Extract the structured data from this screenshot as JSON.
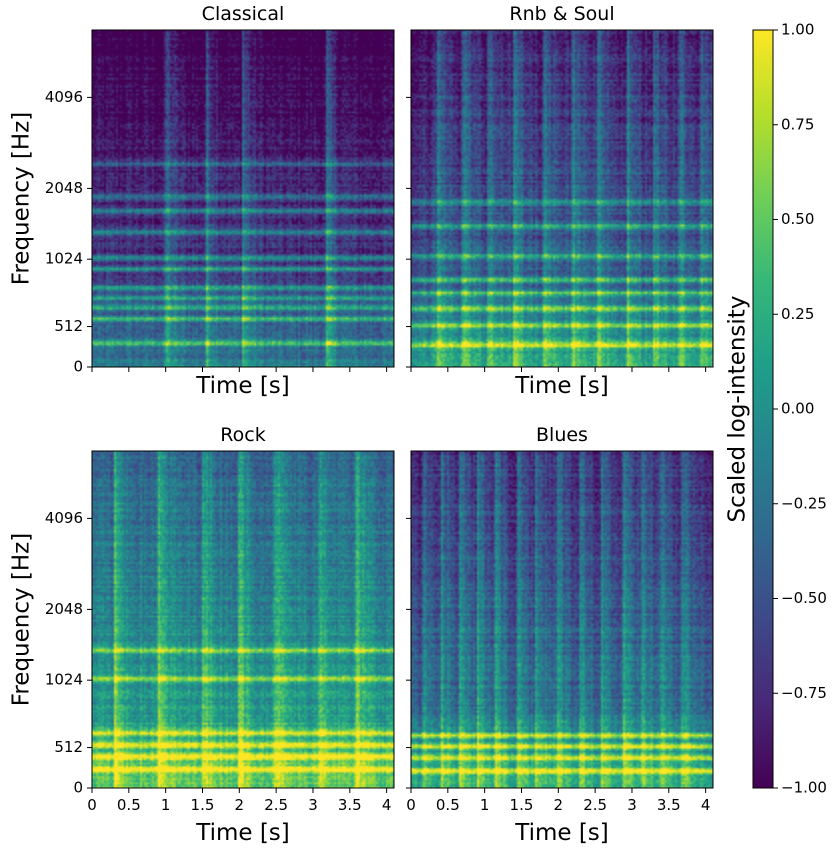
{
  "chart_data": [
    {
      "type": "heatmap",
      "title": "Classical",
      "xlabel": "Time [s]",
      "ylabel": "Frequency [Hz]",
      "xlim": [
        0,
        4.1
      ],
      "ylim": [
        0,
        8000
      ],
      "y_scale": "mel-like",
      "x_ticks": [],
      "y_ticks": [
        "0",
        "512",
        "1024",
        "2048",
        "4096"
      ],
      "y_tick_values": [
        0,
        512,
        1024,
        2048,
        4096
      ],
      "harmonic_bands_hz": [
        130,
        300,
        390,
        470,
        560,
        750,
        880,
        1220,
        1550,
        1800,
        2500
      ],
      "onsets_s": [
        1.0,
        1.55,
        2.05,
        3.2
      ],
      "base_level": -0.55,
      "low_freq_boost": 0.6
    },
    {
      "type": "heatmap",
      "title": "Rnb & Soul",
      "xlabel": "Time [s]",
      "ylabel": "",
      "xlim": [
        0,
        4.1
      ],
      "ylim": [
        0,
        8000
      ],
      "y_scale": "mel-like",
      "x_ticks": [],
      "y_ticks": [],
      "harmonic_bands_hz": [
        120,
        250,
        380,
        510,
        640,
        900,
        1300,
        1700
      ],
      "onsets_s": [
        0.35,
        0.7,
        1.05,
        1.4,
        1.8,
        2.2,
        2.55,
        2.95,
        3.3,
        3.65,
        3.95
      ],
      "base_level": -0.35,
      "low_freq_boost": 0.9
    },
    {
      "type": "heatmap",
      "title": "Rock",
      "xlabel": "Time [s]",
      "ylabel": "Frequency [Hz]",
      "xlim": [
        0,
        4.1
      ],
      "ylim": [
        0,
        8000
      ],
      "y_scale": "mel-like",
      "x_ticks": [
        "0",
        "0.5",
        "1",
        "1.5",
        "2",
        "2.5",
        "3",
        "3.5",
        "4"
      ],
      "x_tick_values": [
        0,
        0.5,
        1,
        1.5,
        2,
        2.5,
        3,
        3.5,
        4
      ],
      "y_ticks": [
        "0",
        "512",
        "1024",
        "2048",
        "4096"
      ],
      "y_tick_values": [
        0,
        512,
        1024,
        2048,
        4096
      ],
      "harmonic_bands_hz": [
        100,
        180,
        260,
        350,
        880,
        1250
      ],
      "onsets_s": [
        0.3,
        0.9,
        1.5,
        2.0,
        2.5,
        3.1,
        3.6
      ],
      "base_level": 0.15,
      "low_freq_boost": 0.6
    },
    {
      "type": "heatmap",
      "title": "Blues",
      "xlabel": "Time [s]",
      "ylabel": "",
      "xlim": [
        0,
        4.1
      ],
      "ylim": [
        0,
        8000
      ],
      "y_scale": "mel-like",
      "x_ticks": [
        "0",
        "0.5",
        "1",
        "1.5",
        "2",
        "2.5",
        "3",
        "3.5",
        "4"
      ],
      "x_tick_values": [
        0,
        0.5,
        1,
        1.5,
        2,
        2.5,
        3,
        3.5,
        4
      ],
      "y_ticks": [],
      "harmonic_bands_hz": [
        90,
        170,
        250,
        330
      ],
      "onsets_s": [
        0.15,
        0.4,
        0.65,
        0.9,
        1.15,
        1.45,
        1.7,
        2.0,
        2.3,
        2.6,
        2.9,
        3.15,
        3.4,
        3.7
      ],
      "base_level": -0.3,
      "low_freq_boost": 0.8
    }
  ],
  "colorbar": {
    "label": "Scaled log-intensity",
    "range": [
      -1.0,
      1.0
    ],
    "ticks": [
      "1.00",
      "0.75",
      "0.50",
      "0.25",
      "0.00",
      "−0.25",
      "−0.50",
      "−0.75",
      "−1.00"
    ],
    "tick_values": [
      1.0,
      0.75,
      0.5,
      0.25,
      0.0,
      -0.25,
      -0.5,
      -0.75,
      -1.0
    ],
    "colormap": "viridis",
    "colormap_stops": [
      "#440154",
      "#482878",
      "#3e4989",
      "#31688e",
      "#26828e",
      "#1f9e89",
      "#35b779",
      "#6ece58",
      "#b5de2b",
      "#fde725"
    ]
  }
}
